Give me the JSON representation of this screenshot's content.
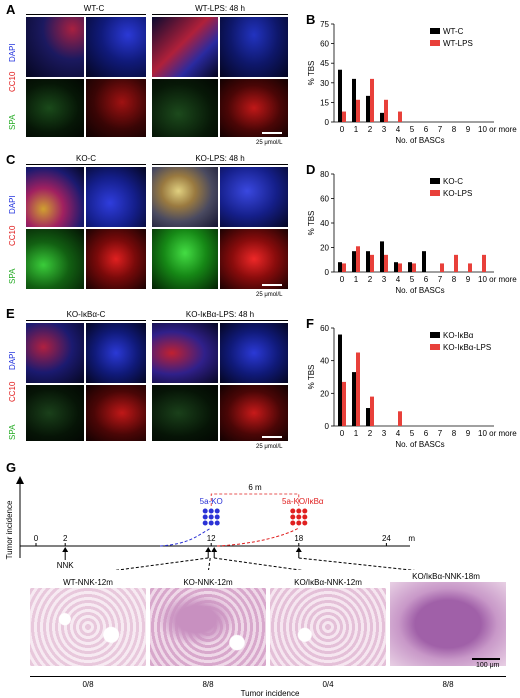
{
  "panels": {
    "A": {
      "label": "A",
      "left_title": "WT-C",
      "right_title": "WT-LPS: 48 h",
      "scale": "25 μmol/L"
    },
    "C": {
      "label": "C",
      "left_title": "KO-C",
      "right_title": "KO-LPS: 48 h",
      "scale": "25 μmol/L"
    },
    "E": {
      "label": "E",
      "left_title": "KO-IκBα-C",
      "right_title": "KO-IκBα-LPS: 48 h",
      "scale": "25 μmol/L"
    },
    "B": {
      "label": "B"
    },
    "D": {
      "label": "D"
    },
    "F": {
      "label": "F"
    },
    "G": {
      "label": "G"
    }
  },
  "stain_labels": {
    "dapi": "DAPI",
    "cc10": "CC10",
    "spa": "SPA"
  },
  "colors": {
    "black_series": "#000000",
    "red_series": "#e8403a",
    "blue_dots": "#2b32d6",
    "red_dots": "#e02020",
    "dapi_blue": "#2233dd",
    "cc10_red": "#e01818",
    "spa_green": "#22aa22"
  },
  "chart_data": [
    {
      "id": "B",
      "type": "bar",
      "categories": [
        "0",
        "1",
        "2",
        "3",
        "4",
        "5",
        "6",
        "7",
        "8",
        "9",
        "10 or more"
      ],
      "series": [
        {
          "name": "WT-C",
          "values": [
            40,
            33,
            20,
            7,
            0,
            0,
            0,
            0,
            0,
            0,
            0
          ]
        },
        {
          "name": "WT-LPS",
          "values": [
            8,
            17,
            33,
            17,
            8,
            0,
            0,
            0,
            0,
            0,
            0
          ]
        }
      ],
      "xlabel": "No. of BASCs",
      "ylabel": "% TBS",
      "ylim": [
        0,
        75
      ],
      "yticks": [
        0,
        15,
        30,
        45,
        60,
        75
      ],
      "legend": "top-right"
    },
    {
      "id": "D",
      "type": "bar",
      "categories": [
        "0",
        "1",
        "2",
        "3",
        "4",
        "5",
        "6",
        "7",
        "8",
        "9",
        "10 or more"
      ],
      "series": [
        {
          "name": "KO-C",
          "values": [
            8,
            17,
            17,
            25,
            8,
            8,
            17,
            0,
            0,
            0,
            0
          ]
        },
        {
          "name": "KO-LPS",
          "values": [
            7,
            21,
            14,
            14,
            7,
            7,
            0,
            7,
            14,
            7,
            14
          ]
        }
      ],
      "xlabel": "No. of BASCs",
      "ylabel": "% TBS",
      "ylim": [
        0,
        80
      ],
      "yticks": [
        0,
        20,
        40,
        60,
        80
      ],
      "legend": "top-right"
    },
    {
      "id": "F",
      "type": "bar",
      "categories": [
        "0",
        "1",
        "2",
        "3",
        "4",
        "5",
        "6",
        "7",
        "8",
        "9",
        "10 or more"
      ],
      "series": [
        {
          "name": "KO-IκBα",
          "values": [
            56,
            33,
            11,
            0,
            0,
            0,
            0,
            0,
            0,
            0,
            0
          ]
        },
        {
          "name": "KO-IκBα-LPS",
          "values": [
            27,
            45,
            18,
            0,
            9,
            0,
            0,
            0,
            0,
            0,
            0
          ]
        }
      ],
      "xlabel": "No. of BASCs",
      "ylabel": "% TBS",
      "ylim": [
        0,
        60
      ],
      "yticks": [
        0,
        20,
        40,
        60
      ],
      "legend": "top-right"
    }
  ],
  "timeline": {
    "ylabel": "Tumor incidence",
    "ticks": [
      "0",
      "2",
      "12",
      "18",
      "24"
    ],
    "tick_values": [
      0,
      2,
      12,
      18,
      24
    ],
    "unit": "m",
    "nnk": "NNK",
    "span_label": "6 m",
    "group_a": "5a-KO",
    "group_b": "5a-KO/IκBα",
    "histology": [
      {
        "title": "WT-NNK-12m",
        "incidence": "0/8"
      },
      {
        "title": "KO-NNK-12m",
        "incidence": "8/8"
      },
      {
        "title": "KO/IκBα-NNK-12m",
        "incidence": "0/4"
      },
      {
        "title": "KO/IκBα-NNK-18m",
        "incidence": "8/8"
      }
    ],
    "scale": "100 μm",
    "footer": "Tumor incidence"
  }
}
